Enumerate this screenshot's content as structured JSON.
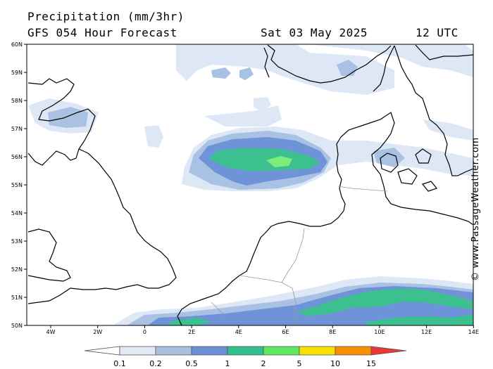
{
  "header": {
    "title": "Precipitation (mm/3hr)",
    "model": "GFS 054 Hour Forecast",
    "date": "Sat 03 May 2025",
    "time": "12 UTC"
  },
  "credit": "© www.PassageWeather.com",
  "latitude_labels": [
    "60N",
    "59N",
    "58N",
    "57N",
    "56N",
    "55N",
    "54N",
    "53N",
    "52N",
    "51N",
    "50N"
  ],
  "longitude_labels": [
    "4W",
    "2W",
    "0",
    "2E",
    "4E",
    "6E",
    "8E",
    "10E",
    "12E",
    "14E"
  ],
  "legend": {
    "labels": [
      "0.1",
      "0.2",
      "0.5",
      "1",
      "2",
      "5",
      "10",
      "15"
    ],
    "colors": [
      "#ffffff",
      "#e2eaf6",
      "#a8c0e0",
      "#6a8fd6",
      "#30c090",
      "#60e860",
      "#f8e000",
      "#f89000",
      "#e83838"
    ]
  },
  "precip_colors": {
    "light": "#dde7f5",
    "medium": "#a9c1e2",
    "heavy": "#6f93d8",
    "strong": "#3cc090",
    "intense": "#7cec7c"
  }
}
